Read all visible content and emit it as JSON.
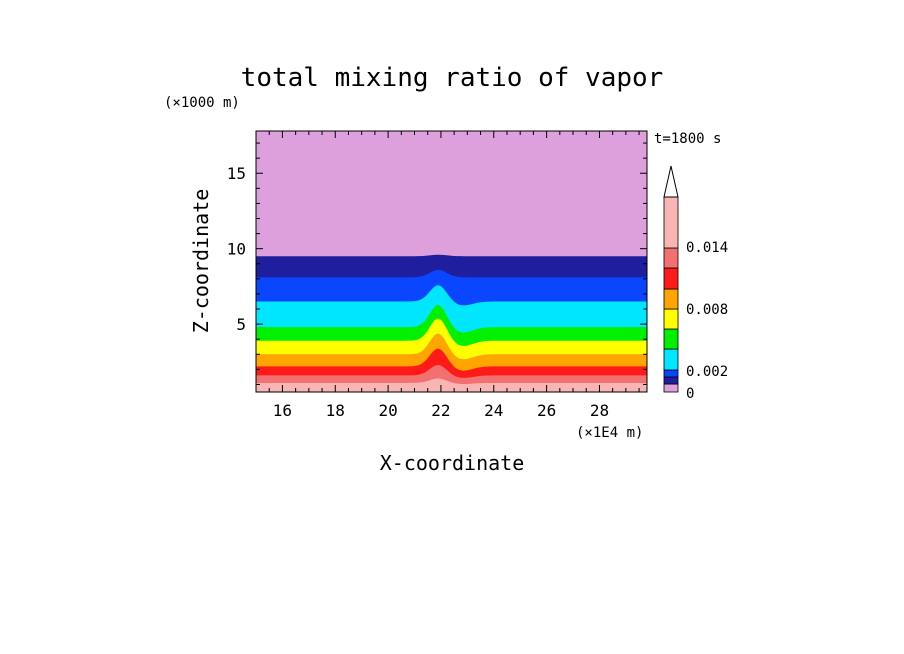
{
  "chart_data": {
    "type": "contour",
    "title": "total mixing ratio of vapor",
    "time_label": "t=1800 s",
    "xlabel": "X-coordinate",
    "ylabel": "Z-coordinate",
    "x_unit": "(×1E4 m)",
    "y_unit": "(×1000 m)",
    "xlim": [
      15.0,
      29.8
    ],
    "ylim": [
      0.5,
      17.8
    ],
    "x_ticks": [
      "16",
      "18",
      "20",
      "22",
      "24",
      "26",
      "28"
    ],
    "y_ticks": [
      "5",
      "10",
      "15"
    ],
    "ridge_center_x": 21.9,
    "colorbar": {
      "tick_labels": [
        "0",
        "0.002",
        "0.008",
        "0.014"
      ],
      "levels": [
        0,
        0.001,
        0.002,
        0.004,
        0.006,
        0.008,
        0.01,
        0.012,
        0.014,
        0.016
      ],
      "extend": "max",
      "colors": [
        "#dda0dd",
        "#1e1e9e",
        "#0a46ff",
        "#00e6ff",
        "#00f000",
        "#ffff00",
        "#ffa500",
        "#ff1a1a",
        "#f27070",
        "#f9b4b4"
      ]
    },
    "bands": [
      {
        "level_index": 0,
        "color": "#dda0dd",
        "base_top": 17.8,
        "bump": 0.0
      },
      {
        "level_index": 1,
        "color": "#1e1e9e",
        "base_top": 9.5,
        "bump": 0.1
      },
      {
        "level_index": 2,
        "color": "#0a46ff",
        "base_top": 8.1,
        "bump": 0.5
      },
      {
        "level_index": 3,
        "color": "#00e6ff",
        "base_top": 6.5,
        "bump": 1.1
      },
      {
        "level_index": 4,
        "color": "#00f000",
        "base_top": 4.8,
        "bump": 1.5
      },
      {
        "level_index": 5,
        "color": "#ffff00",
        "base_top": 3.9,
        "bump": 1.5
      },
      {
        "level_index": 6,
        "color": "#ffa500",
        "base_top": 3.0,
        "bump": 1.4
      },
      {
        "level_index": 7,
        "color": "#ff1a1a",
        "base_top": 2.2,
        "bump": 1.2
      },
      {
        "level_index": 8,
        "color": "#f27070",
        "base_top": 1.6,
        "bump": 0.7
      },
      {
        "level_index": 9,
        "color": "#f9b4b4",
        "base_top": 1.1,
        "bump": 0.3
      }
    ]
  }
}
